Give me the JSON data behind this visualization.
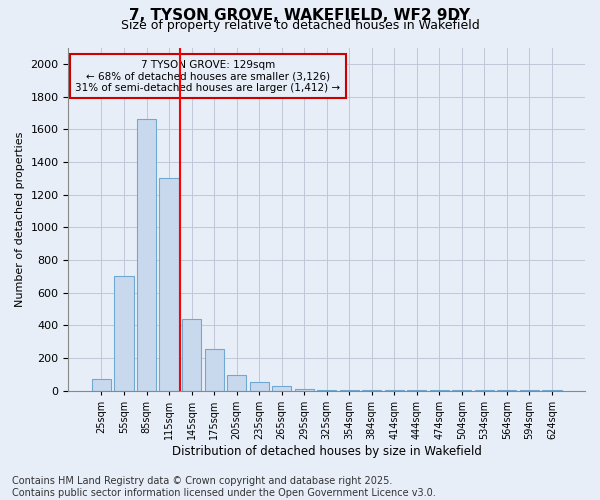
{
  "title_line1": "7, TYSON GROVE, WAKEFIELD, WF2 9DY",
  "title_line2": "Size of property relative to detached houses in Wakefield",
  "xlabel": "Distribution of detached houses by size in Wakefield",
  "ylabel": "Number of detached properties",
  "categories": [
    "25sqm",
    "55sqm",
    "85sqm",
    "115sqm",
    "145sqm",
    "175sqm",
    "205sqm",
    "235sqm",
    "265sqm",
    "295sqm",
    "325sqm",
    "354sqm",
    "384sqm",
    "414sqm",
    "444sqm",
    "474sqm",
    "504sqm",
    "534sqm",
    "564sqm",
    "594sqm",
    "624sqm"
  ],
  "values": [
    70,
    700,
    1660,
    1300,
    440,
    255,
    95,
    55,
    30,
    10,
    5,
    3,
    3,
    3,
    2,
    2,
    2,
    1,
    1,
    1,
    1
  ],
  "bar_color": "#c8d9ee",
  "bar_edge_color": "#6fa8d0",
  "red_line_label": "7 TYSON GROVE: 129sqm",
  "annotation_line2": "← 68% of detached houses are smaller (3,126)",
  "annotation_line3": "31% of semi-detached houses are larger (1,412) →",
  "annotation_box_color": "#cc0000",
  "ylim": [
    0,
    2100
  ],
  "yticks": [
    0,
    200,
    400,
    600,
    800,
    1000,
    1200,
    1400,
    1600,
    1800,
    2000
  ],
  "grid_color": "#c0c8d8",
  "bg_color": "#e8eef8",
  "footer_line1": "Contains HM Land Registry data © Crown copyright and database right 2025.",
  "footer_line2": "Contains public sector information licensed under the Open Government Licence v3.0.",
  "title_fontsize": 11,
  "subtitle_fontsize": 9,
  "ylabel_fontsize": 8,
  "xlabel_fontsize": 8.5,
  "footer_fontsize": 7
}
